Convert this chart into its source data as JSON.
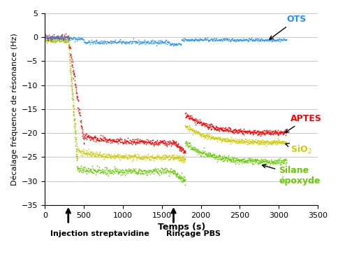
{
  "title": "",
  "xlabel": "Temps (s)",
  "ylabel": "Décalage fréquence de résonance (Hz)",
  "xlim": [
    0,
    3500
  ],
  "ylim": [
    -35,
    5
  ],
  "xticks": [
    0,
    500,
    1000,
    1500,
    2000,
    2500,
    3000,
    3500
  ],
  "yticks": [
    5,
    0,
    -5,
    -10,
    -15,
    -20,
    -25,
    -30,
    -35
  ],
  "injection_x": 300,
  "rincage_x": 1650,
  "colors": {
    "OTS": "#1e90ff",
    "APTES": "#ff0000",
    "SiO2": "#cccc00",
    "Silane": "#66cc00"
  }
}
